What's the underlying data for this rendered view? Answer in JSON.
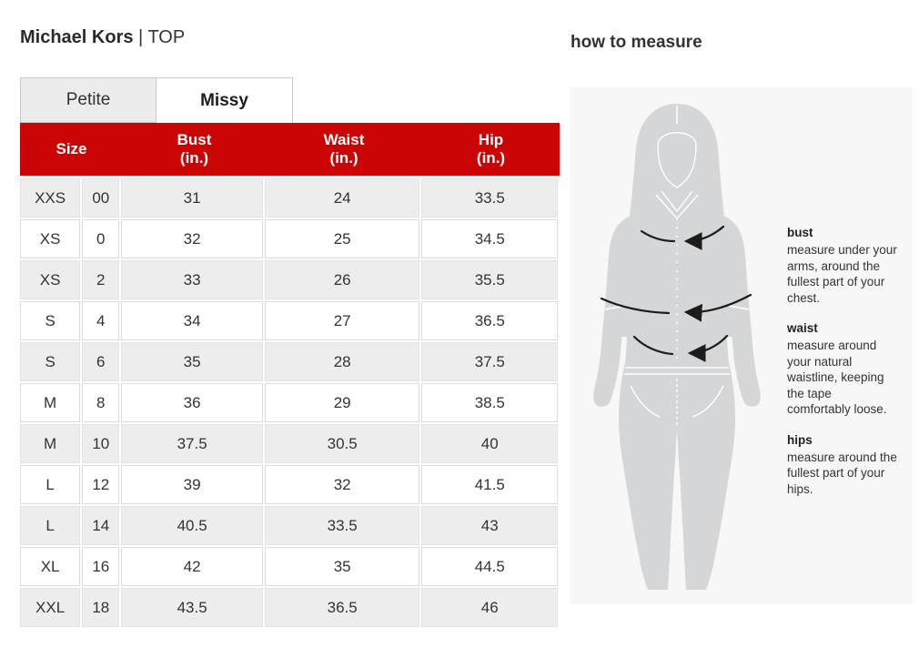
{
  "header": {
    "brand": "Michael Kors",
    "separator": "|",
    "category": "TOP"
  },
  "tabs": [
    {
      "label": "Petite",
      "active": false
    },
    {
      "label": "Missy",
      "active": true
    }
  ],
  "size_chart": {
    "columns": [
      {
        "label": "Size"
      },
      {
        "label": "Bust",
        "unit": "(in.)"
      },
      {
        "label": "Waist",
        "unit": "(in.)"
      },
      {
        "label": "Hip",
        "unit": "(in.)"
      }
    ],
    "rows": [
      [
        "XXS",
        "00",
        "31",
        "24",
        "33.5"
      ],
      [
        "XS",
        "0",
        "32",
        "25",
        "34.5"
      ],
      [
        "XS",
        "2",
        "33",
        "26",
        "35.5"
      ],
      [
        "S",
        "4",
        "34",
        "27",
        "36.5"
      ],
      [
        "S",
        "6",
        "35",
        "28",
        "37.5"
      ],
      [
        "M",
        "8",
        "36",
        "29",
        "38.5"
      ],
      [
        "M",
        "10",
        "37.5",
        "30.5",
        "40"
      ],
      [
        "L",
        "12",
        "39",
        "32",
        "41.5"
      ],
      [
        "L",
        "14",
        "40.5",
        "33.5",
        "43"
      ],
      [
        "XL",
        "16",
        "42",
        "35",
        "44.5"
      ],
      [
        "XXL",
        "18",
        "43.5",
        "36.5",
        "46"
      ]
    ]
  },
  "measure_panel": {
    "title": "how to measure",
    "sections": [
      {
        "label": "bust",
        "text": "measure under your arms, around the fullest part of your chest."
      },
      {
        "label": "waist",
        "text": "measure around your natural waistline, keeping the tape comfortably loose."
      },
      {
        "label": "hips",
        "text": "measure around the fullest part of your hips."
      }
    ]
  },
  "colors": {
    "accent_red": "#cb0505",
    "row_alt_bg": "#ededed",
    "tab_inactive_bg": "#ececec",
    "panel_bg": "#f7f7f7",
    "silhouette_gray": "#d4d6d7",
    "arrow_black": "#1c1c1c"
  }
}
